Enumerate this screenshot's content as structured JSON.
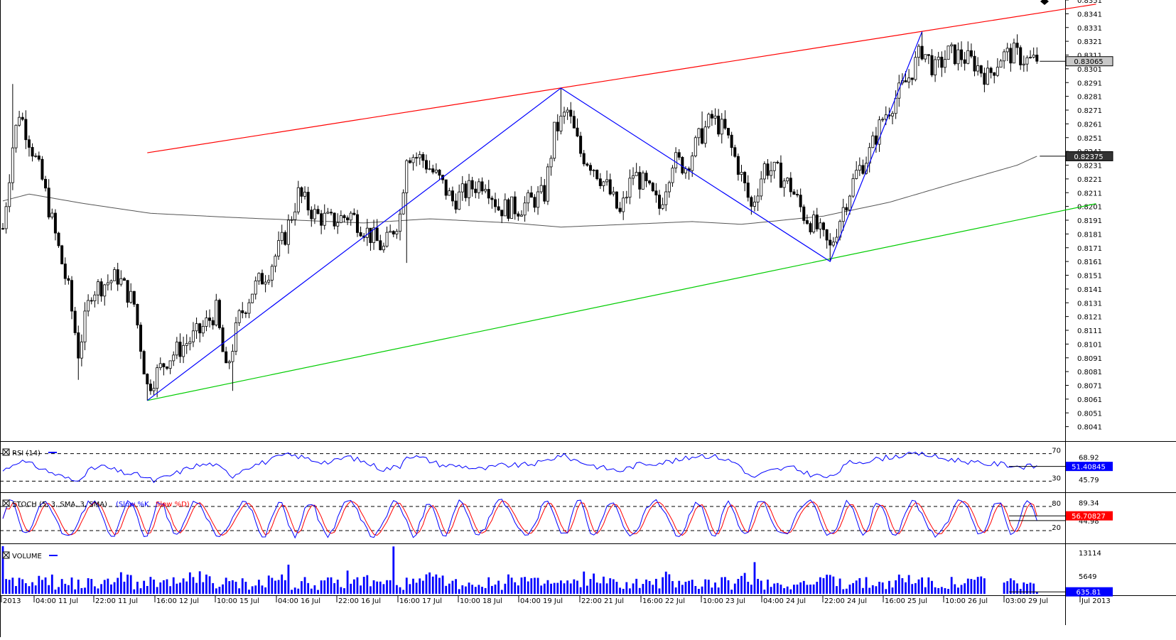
{
  "colors": {
    "up": "#ffffff",
    "down": "#000000",
    "wick": "#000000",
    "upper_trend": "#ff0000",
    "lower_trend": "#00cc00",
    "zigzag": "#0000ff",
    "ma": "#555555",
    "rsi": "#0000ff",
    "stoch_k": "#0000ff",
    "stoch_d": "#ff0000",
    "volume": "#0000ff",
    "rsi_badge": "#0000ff",
    "stoch_badge": "#ff0000",
    "volume_badge": "#0000ff"
  },
  "chart_data": [
    {
      "type": "candlestick",
      "name": "price",
      "ylim": [
        0.8031,
        0.8351
      ],
      "y_ticks": [
        "0.8351",
        "0.8341",
        "0.8331",
        "0.8321",
        "0.8311",
        "0.8301",
        "0.8291",
        "0.8281",
        "0.8271",
        "0.8261",
        "0.8251",
        "0.8241",
        "0.8231",
        "0.8221",
        "0.8211",
        "0.8201",
        "0.8191",
        "0.8181",
        "0.8171",
        "0.8161",
        "0.8151",
        "0.8141",
        "0.8131",
        "0.8121",
        "0.8111",
        "0.8101",
        "0.8091",
        "0.8081",
        "0.8071",
        "0.8061",
        "0.8051",
        "0.8041"
      ],
      "x_labels": [
        "2013",
        "04:00 11 Jul",
        "22:00 11 Jul",
        "16:00 12 Jul",
        "10:00 15 Jul",
        "04:00 16 Jul",
        "22:00 16 Jul",
        "16:00 17 Jul",
        "10:00 18 Jul",
        "04:00 19 Jul",
        "22:00 21 Jul",
        "16:00 22 Jul",
        "10:00 23 Jul",
        "04:00 24 Jul",
        "22:00 24 Jul",
        "16:00 25 Jul",
        "10:00 26 Jul",
        "03:00 29 Jul",
        "Jul 2013"
      ],
      "price_badges": [
        "0.83065",
        "0.82375"
      ],
      "last_price": 0.83065,
      "ma_last": 0.82375,
      "ma_anchors": [
        [
          0,
          0.8205
        ],
        [
          8,
          0.821
        ],
        [
          25,
          0.8203
        ],
        [
          45,
          0.8196
        ],
        [
          70,
          0.8193
        ],
        [
          90,
          0.8191
        ],
        [
          110,
          0.8189
        ],
        [
          130,
          0.8192
        ],
        [
          155,
          0.8189
        ],
        [
          170,
          0.8186
        ],
        [
          190,
          0.8188
        ],
        [
          210,
          0.819
        ],
        [
          225,
          0.8188
        ],
        [
          250,
          0.8194
        ],
        [
          270,
          0.8204
        ],
        [
          290,
          0.8218
        ],
        [
          309,
          0.8231
        ],
        [
          315,
          0.82375
        ]
      ],
      "trendlines": [
        {
          "id": "upper",
          "from": [
            44,
            0.824
          ],
          "to": [
            333,
            0.8348
          ]
        },
        {
          "id": "lower",
          "from": [
            44,
            0.806
          ],
          "to": [
            333,
            0.8203
          ]
        }
      ],
      "zigzag": [
        [
          44,
          0.806
        ],
        [
          170,
          0.8287
        ],
        [
          252,
          0.8161
        ],
        [
          280,
          0.8328
        ]
      ],
      "candle_count": 316,
      "path_anchors": [
        [
          0,
          0.8185
        ],
        [
          3,
          0.8245
        ],
        [
          5,
          0.827
        ],
        [
          8,
          0.825
        ],
        [
          12,
          0.822
        ],
        [
          16,
          0.818
        ],
        [
          20,
          0.814
        ],
        [
          23,
          0.8095
        ],
        [
          27,
          0.814
        ],
        [
          31,
          0.8145
        ],
        [
          35,
          0.815
        ],
        [
          40,
          0.813
        ],
        [
          44,
          0.807
        ],
        [
          50,
          0.809
        ],
        [
          55,
          0.81
        ],
        [
          60,
          0.811
        ],
        [
          65,
          0.8125
        ],
        [
          68,
          0.808
        ],
        [
          72,
          0.812
        ],
        [
          76,
          0.814
        ],
        [
          81,
          0.8155
        ],
        [
          86,
          0.818
        ],
        [
          90,
          0.821
        ],
        [
          95,
          0.8195
        ],
        [
          100,
          0.819
        ],
        [
          106,
          0.8195
        ],
        [
          110,
          0.8185
        ],
        [
          116,
          0.817
        ],
        [
          121,
          0.8195
        ],
        [
          123,
          0.824
        ],
        [
          128,
          0.8235
        ],
        [
          133,
          0.822
        ],
        [
          137,
          0.8205
        ],
        [
          143,
          0.8215
        ],
        [
          147,
          0.822
        ],
        [
          151,
          0.82
        ],
        [
          157,
          0.82
        ],
        [
          161,
          0.8205
        ],
        [
          165,
          0.821
        ],
        [
          168,
          0.8255
        ],
        [
          172,
          0.827
        ],
        [
          176,
          0.824
        ],
        [
          180,
          0.823
        ],
        [
          184,
          0.8215
        ],
        [
          188,
          0.8195
        ],
        [
          192,
          0.8225
        ],
        [
          196,
          0.8215
        ],
        [
          200,
          0.82
        ],
        [
          204,
          0.8235
        ],
        [
          208,
          0.823
        ],
        [
          212,
          0.825
        ],
        [
          216,
          0.8265
        ],
        [
          220,
          0.8255
        ],
        [
          224,
          0.823
        ],
        [
          228,
          0.82
        ],
        [
          232,
          0.823
        ],
        [
          236,
          0.8225
        ],
        [
          240,
          0.8215
        ],
        [
          244,
          0.8195
        ],
        [
          248,
          0.8185
        ],
        [
          252,
          0.817
        ],
        [
          256,
          0.82
        ],
        [
          260,
          0.8225
        ],
        [
          264,
          0.824
        ],
        [
          268,
          0.8265
        ],
        [
          272,
          0.828
        ],
        [
          276,
          0.8295
        ],
        [
          280,
          0.8315
        ],
        [
          284,
          0.83
        ],
        [
          288,
          0.8312
        ],
        [
          292,
          0.831
        ],
        [
          296,
          0.8305
        ],
        [
          300,
          0.8295
        ],
        [
          304,
          0.831
        ],
        [
          308,
          0.8312
        ],
        [
          312,
          0.8307
        ],
        [
          315,
          0.83065
        ]
      ],
      "spikes": [
        [
          3,
          0.829,
          "h"
        ],
        [
          23,
          0.8075,
          "l"
        ],
        [
          44,
          0.806,
          "l"
        ],
        [
          70,
          0.8067,
          "l"
        ],
        [
          123,
          0.816,
          "l"
        ],
        [
          170,
          0.8287,
          "h"
        ],
        [
          213,
          0.827,
          "h"
        ],
        [
          228,
          0.8195,
          "l"
        ],
        [
          252,
          0.8161,
          "l"
        ],
        [
          280,
          0.8328,
          "h"
        ]
      ]
    },
    {
      "type": "line",
      "name": "RSI",
      "title": "RSI (14)",
      "ylim": [
        15,
        85
      ],
      "levels": [
        "70",
        "30"
      ],
      "extra_tick": "68.92",
      "hidden_tick": "45.79",
      "last_value": "51.40845",
      "anchors": [
        [
          0,
          45
        ],
        [
          5,
          60
        ],
        [
          10,
          52
        ],
        [
          16,
          40
        ],
        [
          22,
          30
        ],
        [
          26,
          45
        ],
        [
          30,
          52
        ],
        [
          36,
          43
        ],
        [
          42,
          38
        ],
        [
          46,
          30
        ],
        [
          52,
          40
        ],
        [
          58,
          52
        ],
        [
          64,
          55
        ],
        [
          70,
          38
        ],
        [
          74,
          50
        ],
        [
          80,
          58
        ],
        [
          86,
          68
        ],
        [
          90,
          66
        ],
        [
          95,
          60
        ],
        [
          100,
          57
        ],
        [
          105,
          66
        ],
        [
          110,
          58
        ],
        [
          116,
          47
        ],
        [
          121,
          52
        ],
        [
          123,
          68
        ],
        [
          128,
          63
        ],
        [
          134,
          53
        ],
        [
          140,
          52
        ],
        [
          146,
          47
        ],
        [
          152,
          53
        ],
        [
          158,
          53
        ],
        [
          164,
          57
        ],
        [
          170,
          68
        ],
        [
          176,
          58
        ],
        [
          182,
          50
        ],
        [
          188,
          45
        ],
        [
          194,
          55
        ],
        [
          200,
          57
        ],
        [
          206,
          60
        ],
        [
          212,
          68
        ],
        [
          218,
          65
        ],
        [
          224,
          55
        ],
        [
          228,
          35
        ],
        [
          234,
          45
        ],
        [
          240,
          50
        ],
        [
          246,
          40
        ],
        [
          252,
          35
        ],
        [
          258,
          57
        ],
        [
          264,
          60
        ],
        [
          270,
          65
        ],
        [
          276,
          69
        ],
        [
          280,
          70
        ],
        [
          286,
          63
        ],
        [
          292,
          60
        ],
        [
          298,
          55
        ],
        [
          304,
          55
        ],
        [
          310,
          51
        ],
        [
          315,
          51.4
        ]
      ]
    },
    {
      "type": "line",
      "name": "STOCH",
      "title": "STOCH (5, 3, SMA, 3, SMA)",
      "series_labels": [
        "(Slow %K",
        "Slow %D)"
      ],
      "ylim": [
        -10,
        110
      ],
      "levels": [
        "80",
        "20"
      ],
      "extra_tick": "89.34",
      "hidden_tick": "44.98",
      "last_value": "56.70827",
      "period": 11.5
    },
    {
      "type": "bar",
      "name": "VOLUME",
      "title": "VOLUME",
      "ylim": [
        0,
        15400
      ],
      "ticks": [
        "13114",
        "5649"
      ],
      "last_value": "635.81",
      "peaks": [
        [
          0,
          15200
        ],
        [
          87,
          9300
        ],
        [
          119,
          15100
        ],
        [
          229,
          10100
        ]
      ],
      "gap": [
        300,
        304
      ]
    }
  ]
}
